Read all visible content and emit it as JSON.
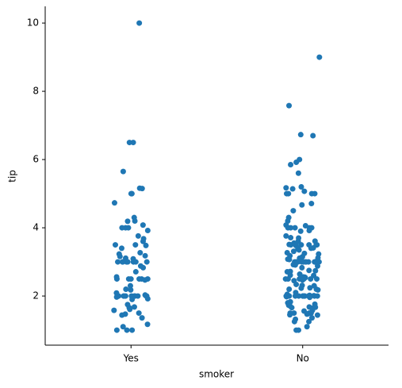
{
  "chart_data": {
    "type": "strip",
    "x_label": "smoker",
    "y_label": "tip",
    "categories": [
      "Yes",
      "No"
    ],
    "color": "#1f77b4",
    "ylim": [
      0.56,
      10.49
    ],
    "yticks": [
      2,
      4,
      6,
      8,
      10
    ],
    "values": [
      [
        10,
        6.5,
        6.5,
        5.65,
        5.15,
        5.16,
        5.0,
        5.0,
        5.0,
        4.73,
        4.3,
        4.2,
        4.19,
        4.08,
        4.0,
        4.0,
        4.0,
        3.92,
        3.76,
        3.68,
        3.6,
        3.5,
        3.5,
        3.48,
        3.4,
        3.27,
        3.23,
        3.18,
        3.16,
        3.11,
        3.09,
        3.0,
        3.0,
        3.0,
        3.0,
        3.0,
        3.0,
        3.0,
        3.0,
        2.88,
        2.83,
        2.71,
        2.56,
        2.5,
        2.5,
        2.5,
        2.5,
        2.5,
        2.5,
        2.47,
        2.3,
        2.2,
        2.18,
        2.09,
        2.03,
        2.0,
        2.0,
        2.0,
        2.0,
        2.0,
        2.0,
        2.0,
        2.0,
        2.0,
        2.0,
        1.97,
        1.92,
        1.9,
        1.75,
        1.68,
        1.66,
        1.61,
        1.58,
        1.5,
        1.47,
        1.44,
        1.36,
        1.17,
        1.1,
        1.0,
        1.0,
        1.0
      ],
      [
        9.0,
        7.58,
        6.73,
        6.7,
        6.0,
        5.92,
        5.85,
        5.6,
        5.2,
        5.17,
        5.14,
        5.07,
        5.0,
        5.0,
        5.0,
        5.0,
        4.71,
        4.67,
        4.5,
        4.3,
        4.2,
        4.08,
        4.06,
        4.0,
        4.0,
        4.0,
        4.0,
        4.0,
        3.92,
        3.9,
        3.76,
        3.71,
        3.7,
        3.61,
        3.6,
        3.55,
        3.51,
        3.5,
        3.5,
        3.5,
        3.5,
        3.5,
        3.48,
        3.41,
        3.4,
        3.39,
        3.35,
        3.31,
        3.27,
        3.25,
        3.23,
        3.18,
        3.15,
        3.12,
        3.11,
        3.08,
        3.07,
        3.02,
        3.0,
        3.0,
        3.0,
        3.0,
        3.0,
        3.0,
        3.0,
        3.0,
        3.0,
        3.0,
        3.0,
        3.0,
        2.98,
        2.92,
        2.91,
        2.88,
        2.83,
        2.75,
        2.74,
        2.72,
        2.71,
        2.64,
        2.61,
        2.6,
        2.56,
        2.55,
        2.54,
        2.52,
        2.5,
        2.5,
        2.5,
        2.5,
        2.5,
        2.5,
        2.47,
        2.45,
        2.34,
        2.31,
        2.3,
        2.24,
        2.23,
        2.2,
        2.2,
        2.18,
        2.1,
        2.05,
        2.02,
        2.01,
        2.0,
        2.0,
        2.0,
        2.0,
        2.0,
        2.0,
        2.0,
        2.0,
        2.0,
        2.0,
        2.0,
        2.0,
        1.98,
        1.96,
        1.83,
        1.8,
        1.76,
        1.73,
        1.71,
        1.68,
        1.67,
        1.66,
        1.64,
        1.58,
        1.56,
        1.5,
        1.5,
        1.5,
        1.5,
        1.5,
        1.48,
        1.47,
        1.45,
        1.44,
        1.36,
        1.32,
        1.25,
        1.25,
        1.1,
        1.0,
        1.0
      ]
    ]
  }
}
